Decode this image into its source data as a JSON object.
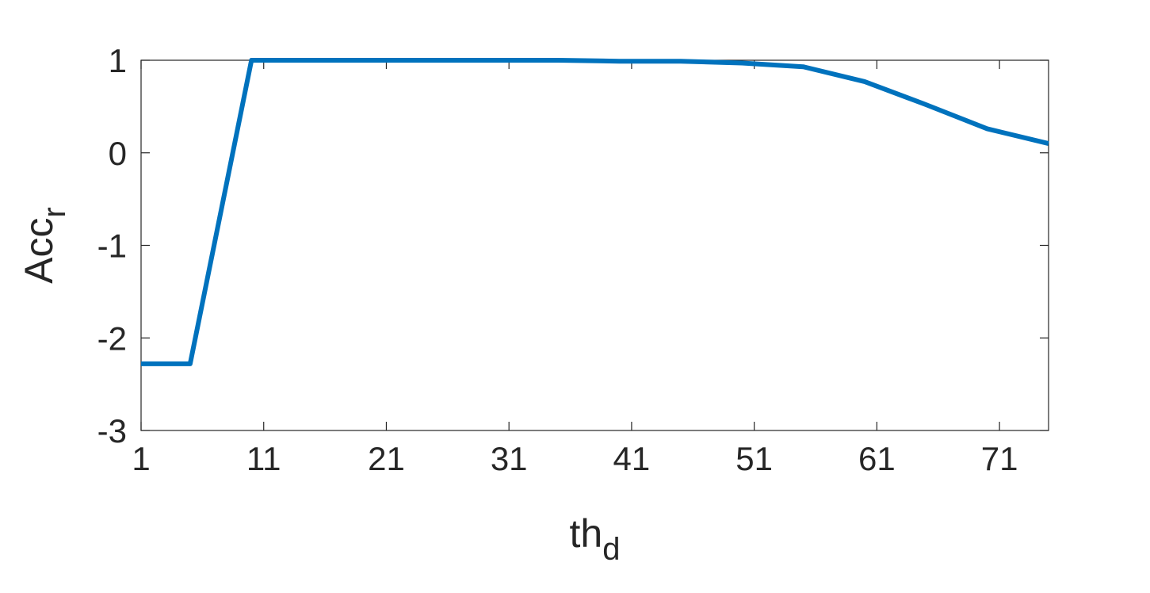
{
  "chart_data": {
    "type": "line",
    "title": "",
    "xlabel": {
      "main": "th",
      "sub": "d"
    },
    "ylabel": {
      "main": "Acc",
      "sub": "r"
    },
    "xlim": [
      1,
      75
    ],
    "ylim": [
      -3,
      1
    ],
    "xticks": [
      1,
      11,
      21,
      31,
      41,
      51,
      61,
      71
    ],
    "yticks": [
      -3,
      -2,
      -1,
      0,
      1
    ],
    "grid": false,
    "series": [
      {
        "color": "#0072BD",
        "x": [
          1,
          5,
          10,
          15,
          20,
          25,
          30,
          35,
          40,
          45,
          50,
          55,
          60,
          65,
          70,
          75
        ],
        "y": [
          -2.28,
          -2.28,
          1.0,
          1.0,
          1.0,
          1.0,
          1.0,
          1.0,
          0.99,
          0.99,
          0.97,
          0.93,
          0.77,
          0.52,
          0.26,
          0.1
        ]
      }
    ]
  }
}
